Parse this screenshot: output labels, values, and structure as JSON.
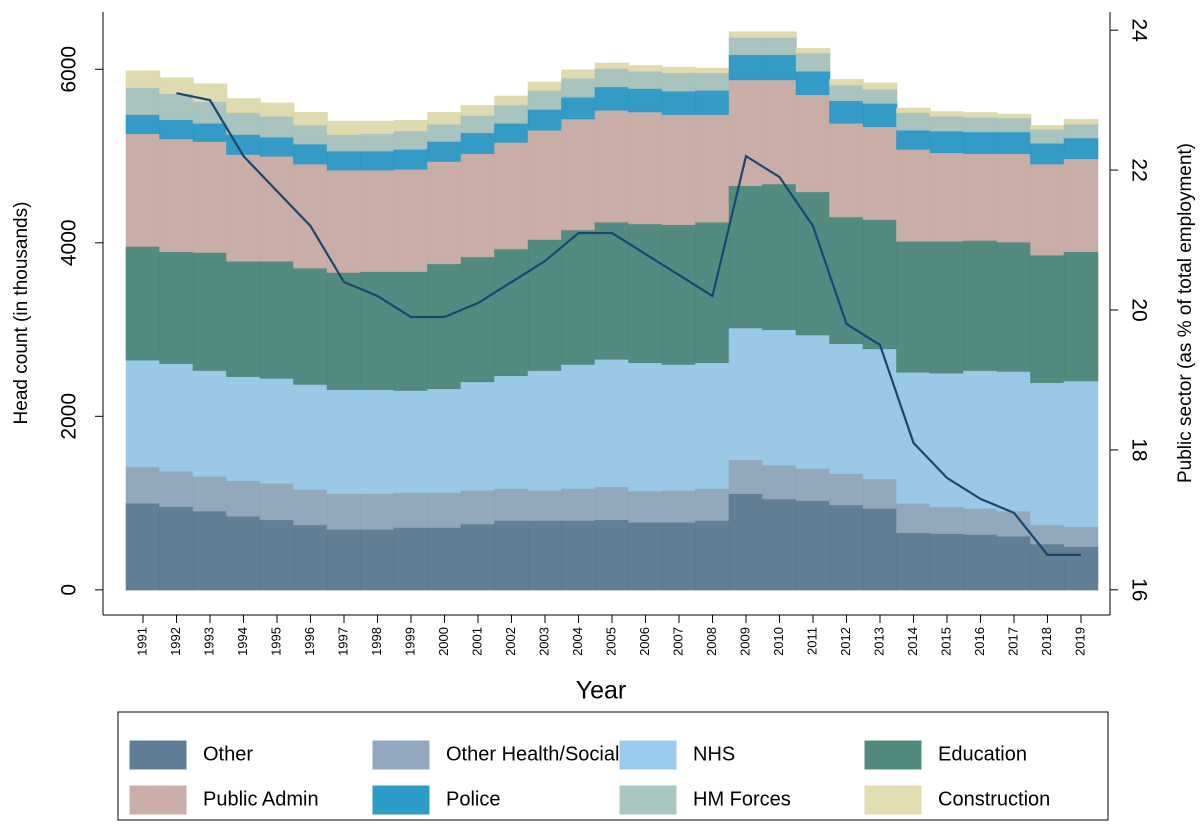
{
  "chart_data": {
    "type": "stacked-bar-line",
    "x_label": "Year",
    "y_label": "Head count (in thousands)",
    "y2_label": "Public sector (as % of total employment)",
    "categories": [
      "1991",
      "1992",
      "1993",
      "1994",
      "1995",
      "1996",
      "1997",
      "1998",
      "1999",
      "2000",
      "2001",
      "2002",
      "2003",
      "2004",
      "2005",
      "2006",
      "2007",
      "2008",
      "2009",
      "2010",
      "2011",
      "2012",
      "2013",
      "2014",
      "2015",
      "2016",
      "2017",
      "2018",
      "2019"
    ],
    "series": [
      {
        "name": "Other",
        "color": "#5f7d95",
        "values": [
          1000,
          960,
          910,
          850,
          810,
          750,
          700,
          700,
          720,
          720,
          760,
          800,
          800,
          800,
          810,
          780,
          780,
          800,
          1110,
          1050,
          1030,
          980,
          940,
          660,
          650,
          640,
          620,
          530,
          500
        ]
      },
      {
        "name": "Other Health/Social",
        "color": "#93a8bd",
        "values": [
          420,
          410,
          400,
          410,
          420,
          410,
          410,
          410,
          400,
          400,
          390,
          370,
          350,
          370,
          380,
          360,
          370,
          370,
          390,
          390,
          370,
          360,
          340,
          340,
          310,
          300,
          290,
          220,
          230
        ]
      },
      {
        "name": "NHS",
        "color": "#9acbec",
        "values": [
          1230,
          1240,
          1220,
          1200,
          1210,
          1210,
          1200,
          1200,
          1180,
          1200,
          1250,
          1300,
          1380,
          1430,
          1470,
          1480,
          1450,
          1450,
          1520,
          1560,
          1540,
          1500,
          1500,
          1510,
          1540,
          1590,
          1610,
          1640,
          1680
        ]
      },
      {
        "name": "Education",
        "color": "#508a7f",
        "values": [
          1310,
          1290,
          1360,
          1330,
          1350,
          1340,
          1350,
          1360,
          1370,
          1440,
          1440,
          1460,
          1510,
          1550,
          1580,
          1600,
          1610,
          1620,
          1640,
          1680,
          1650,
          1460,
          1490,
          1510,
          1520,
          1500,
          1490,
          1470,
          1490
        ]
      },
      {
        "name": "Public Admin",
        "color": "#cbaea7",
        "values": [
          1300,
          1300,
          1280,
          1230,
          1210,
          1200,
          1180,
          1170,
          1180,
          1180,
          1190,
          1230,
          1260,
          1280,
          1290,
          1290,
          1270,
          1240,
          1220,
          1200,
          1120,
          1080,
          1070,
          1060,
          1020,
          1000,
          1020,
          1050,
          1070
        ]
      },
      {
        "name": "Police",
        "color": "#2d9bc8",
        "values": [
          220,
          220,
          210,
          230,
          220,
          230,
          220,
          220,
          230,
          230,
          240,
          220,
          240,
          250,
          270,
          270,
          270,
          280,
          290,
          290,
          270,
          260,
          270,
          220,
          250,
          250,
          250,
          240,
          240
        ]
      },
      {
        "name": "HM Forces",
        "color": "#a9c6c1",
        "values": [
          310,
          300,
          250,
          250,
          240,
          220,
          190,
          200,
          210,
          200,
          200,
          210,
          220,
          220,
          210,
          200,
          210,
          200,
          200,
          200,
          210,
          180,
          160,
          200,
          170,
          170,
          160,
          160,
          160
        ]
      },
      {
        "name": "Construction",
        "color": "#e2ddb0",
        "values": [
          190,
          180,
          200,
          160,
          150,
          140,
          150,
          140,
          120,
          130,
          110,
          100,
          90,
          90,
          60,
          60,
          60,
          50,
          60,
          60,
          50,
          60,
          70,
          50,
          50,
          50,
          40,
          40,
          50
        ]
      }
    ],
    "line": {
      "color": "#1a476f",
      "axis": "y2",
      "values": [
        null,
        23.1,
        23.0,
        22.2,
        21.7,
        21.2,
        20.4,
        20.2,
        19.9,
        19.9,
        20.1,
        20.4,
        20.7,
        21.1,
        21.1,
        20.8,
        20.5,
        20.2,
        22.2,
        21.9,
        21.2,
        19.8,
        19.5,
        18.1,
        17.6,
        17.3,
        17.1,
        16.5,
        16.5
      ]
    },
    "ylim": [
      -290,
      6660
    ],
    "yticks": [
      0,
      2000,
      4000,
      6000
    ],
    "y2lim": [
      15.64,
      24.26
    ],
    "y2ticks": [
      16,
      18,
      20,
      22,
      24
    ],
    "legend": "bottom"
  }
}
